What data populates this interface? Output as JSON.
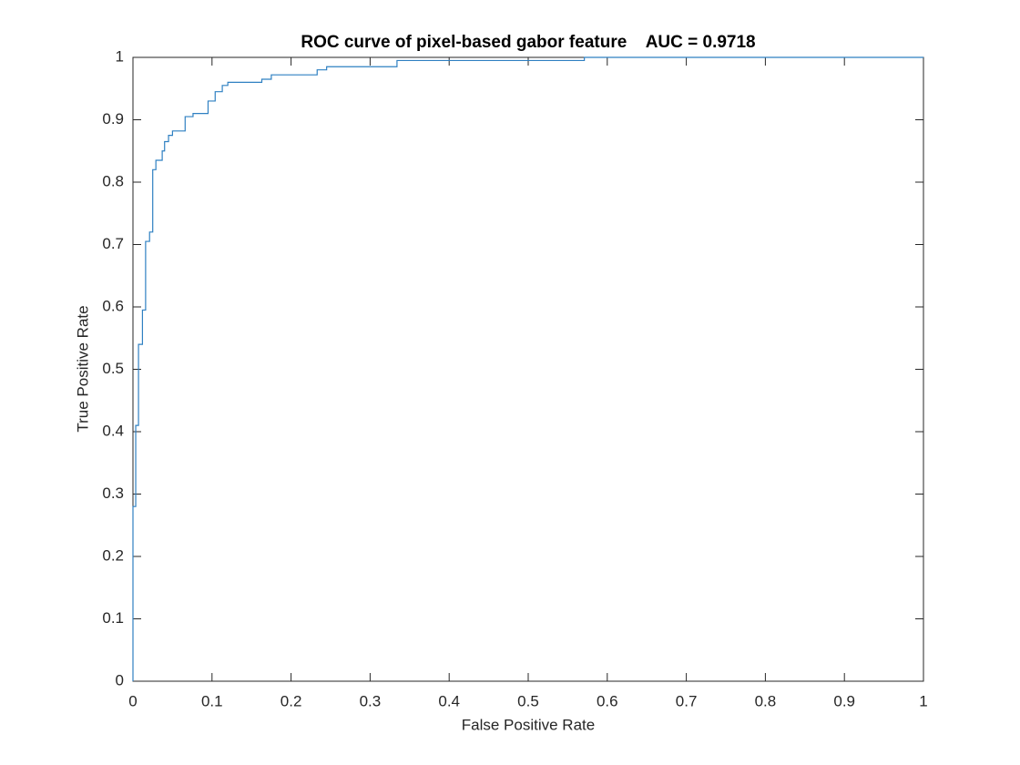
{
  "chart_data": {
    "type": "line",
    "title": "ROC curve of pixel-based gabor feature    AUC = 0.9718",
    "xlabel": "False Positive Rate",
    "ylabel": "True Positive Rate",
    "xlim": [
      0,
      1
    ],
    "ylim": [
      0,
      1
    ],
    "xticks": [
      0,
      0.1,
      0.2,
      0.3,
      0.4,
      0.5,
      0.6,
      0.7,
      0.8,
      0.9,
      1
    ],
    "yticks": [
      0,
      0.1,
      0.2,
      0.3,
      0.4,
      0.5,
      0.6,
      0.7,
      0.8,
      0.9,
      1
    ],
    "grid": false,
    "series": [
      {
        "color": "#2f80c2",
        "x": [
          0,
          0,
          0.0035,
          0.0035,
          0.007,
          0.007,
          0.012,
          0.012,
          0.016,
          0.016,
          0.021,
          0.021,
          0.025,
          0.025,
          0.029,
          0.029,
          0.037,
          0.037,
          0.04,
          0.04,
          0.045,
          0.045,
          0.05,
          0.05,
          0.066,
          0.066,
          0.076,
          0.076,
          0.095,
          0.095,
          0.104,
          0.104,
          0.113,
          0.113,
          0.12,
          0.12,
          0.163,
          0.163,
          0.175,
          0.175,
          0.233,
          0.233,
          0.245,
          0.245,
          0.334,
          0.334,
          0.571,
          0.571,
          1
        ],
        "y": [
          0,
          0.28,
          0.28,
          0.41,
          0.41,
          0.54,
          0.54,
          0.595,
          0.595,
          0.705,
          0.705,
          0.72,
          0.72,
          0.82,
          0.82,
          0.835,
          0.835,
          0.85,
          0.85,
          0.865,
          0.865,
          0.875,
          0.875,
          0.882,
          0.882,
          0.905,
          0.905,
          0.91,
          0.91,
          0.93,
          0.93,
          0.945,
          0.945,
          0.955,
          0.955,
          0.96,
          0.96,
          0.965,
          0.965,
          0.972,
          0.972,
          0.98,
          0.98,
          0.985,
          0.985,
          0.995,
          0.995,
          1,
          1
        ]
      }
    ]
  }
}
